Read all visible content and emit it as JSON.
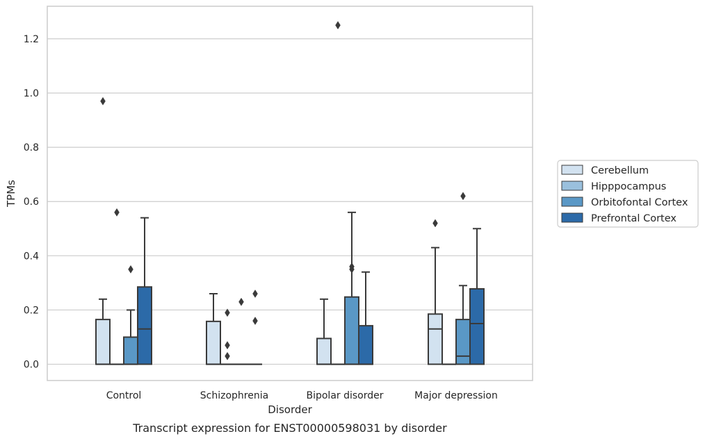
{
  "chart_data": {
    "type": "box",
    "title": "",
    "caption": "Transcript expression for ENST00000598031 by disorder",
    "xlabel": "Disorder",
    "ylabel": "TPMs",
    "ylim": [
      -0.06,
      1.32
    ],
    "yticks": [
      0.0,
      0.2,
      0.4,
      0.6,
      0.8,
      1.0,
      1.2
    ],
    "ytick_labels": [
      "0.0",
      "0.2",
      "0.4",
      "0.6",
      "0.8",
      "1.0",
      "1.2"
    ],
    "grid": "horizontal",
    "legend_position": "right",
    "categories": [
      "Control",
      "Schizophrenia",
      "Bipolar disorder",
      "Major depression"
    ],
    "series": [
      {
        "name": "Cerebellum",
        "color": "#d2e2f0",
        "boxes": [
          {
            "q1": 0.0,
            "median": 0.0,
            "q3": 0.165,
            "whisker_low": 0.0,
            "whisker_high": 0.24,
            "outliers": [
              0.97
            ]
          },
          {
            "q1": 0.0,
            "median": 0.0,
            "q3": 0.158,
            "whisker_low": 0.0,
            "whisker_high": 0.26,
            "outliers": []
          },
          {
            "q1": 0.0,
            "median": 0.0,
            "q3": 0.095,
            "whisker_low": 0.0,
            "whisker_high": 0.24,
            "outliers": []
          },
          {
            "q1": 0.0,
            "median": 0.13,
            "q3": 0.185,
            "whisker_low": 0.0,
            "whisker_high": 0.43,
            "outliers": [
              0.52
            ]
          }
        ]
      },
      {
        "name": "Hipppocampus",
        "color": "#9ac0dd",
        "boxes": [
          {
            "q1": 0.0,
            "median": 0.0,
            "q3": 0.0,
            "whisker_low": 0.0,
            "whisker_high": 0.0,
            "outliers": [
              0.56
            ]
          },
          {
            "q1": 0.0,
            "median": 0.0,
            "q3": 0.0,
            "whisker_low": 0.0,
            "whisker_high": 0.0,
            "outliers": [
              0.19,
              0.07,
              0.03
            ]
          },
          {
            "q1": 0.0,
            "median": 0.0,
            "q3": 0.0,
            "whisker_low": 0.0,
            "whisker_high": 0.0,
            "outliers": [
              1.25
            ]
          },
          {
            "q1": 0.0,
            "median": 0.0,
            "q3": 0.0,
            "whisker_low": 0.0,
            "whisker_high": 0.0,
            "outliers": []
          }
        ]
      },
      {
        "name": "Orbitofontal Cortex",
        "color": "#5a98c6",
        "boxes": [
          {
            "q1": 0.0,
            "median": 0.0,
            "q3": 0.1,
            "whisker_low": 0.0,
            "whisker_high": 0.2,
            "outliers": [
              0.35
            ]
          },
          {
            "q1": 0.0,
            "median": 0.0,
            "q3": 0.0,
            "whisker_low": 0.0,
            "whisker_high": 0.0,
            "outliers": [
              0.23
            ]
          },
          {
            "q1": 0.0,
            "median": 0.0,
            "q3": 0.248,
            "whisker_low": 0.0,
            "whisker_high": 0.56,
            "outliers": [
              0.36,
              0.35
            ]
          },
          {
            "q1": 0.0,
            "median": 0.03,
            "q3": 0.165,
            "whisker_low": 0.0,
            "whisker_high": 0.29,
            "outliers": [
              0.62
            ]
          }
        ]
      },
      {
        "name": "Prefrontal Cortex",
        "color": "#2c6aa8",
        "boxes": [
          {
            "q1": 0.0,
            "median": 0.13,
            "q3": 0.285,
            "whisker_low": 0.0,
            "whisker_high": 0.54,
            "outliers": []
          },
          {
            "q1": 0.0,
            "median": 0.0,
            "q3": 0.0,
            "whisker_low": 0.0,
            "whisker_high": 0.0,
            "outliers": [
              0.26,
              0.16
            ]
          },
          {
            "q1": 0.0,
            "median": 0.0,
            "q3": 0.142,
            "whisker_low": 0.0,
            "whisker_high": 0.34,
            "outliers": []
          },
          {
            "q1": 0.0,
            "median": 0.15,
            "q3": 0.278,
            "whisker_low": 0.0,
            "whisker_high": 0.5,
            "outliers": []
          }
        ]
      }
    ]
  }
}
